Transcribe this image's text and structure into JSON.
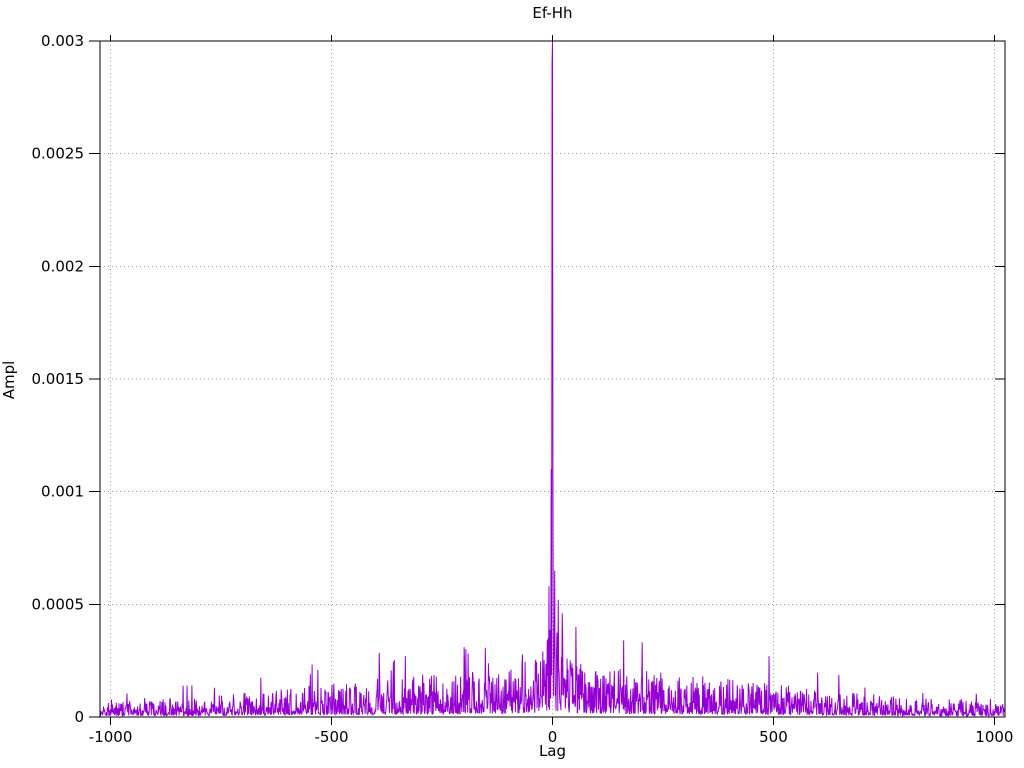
{
  "chart_data": {
    "type": "line",
    "title": "Ef-Hh",
    "xlabel": "Lag",
    "ylabel": "Ampl",
    "xlim": [
      -1024,
      1024
    ],
    "ylim": [
      0,
      0.003
    ],
    "x_ticks": [
      {
        "v": -1000,
        "label": "-1000"
      },
      {
        "v": -500,
        "label": "-500"
      },
      {
        "v": 0,
        "label": "0"
      },
      {
        "v": 500,
        "label": "500"
      },
      {
        "v": 1000,
        "label": "1000"
      }
    ],
    "y_ticks": [
      {
        "v": 0,
        "label": "0"
      },
      {
        "v": 0.0005,
        "label": "0.0005"
      },
      {
        "v": 0.001,
        "label": "0.001"
      },
      {
        "v": 0.0015,
        "label": "0.0015"
      },
      {
        "v": 0.002,
        "label": "0.002"
      },
      {
        "v": 0.0025,
        "label": "0.0025"
      },
      {
        "v": 0.003,
        "label": "0.003"
      }
    ],
    "grid": true,
    "grid_style": "dotted",
    "grid_color": "#9e9e9e",
    "axis_color": "#000000",
    "legend": "none",
    "series": [
      {
        "name": "Ef-Hh",
        "color": "#9400d3",
        "style": "noisy-impulses"
      }
    ],
    "peak": {
      "x": 0,
      "y": 0.003
    },
    "spikes": [
      [
        -8,
        0.00058
      ],
      [
        -3,
        0.0011
      ],
      [
        -1,
        0.0029
      ],
      [
        0,
        0.003
      ],
      [
        1,
        0.00105
      ],
      [
        5,
        0.00065
      ],
      [
        13,
        0.00052
      ],
      [
        22,
        0.00046
      ],
      [
        -200,
        0.00031
      ],
      [
        -333,
        0.00027
      ],
      [
        490,
        0.00027
      ]
    ],
    "noise": {
      "seed": 1234567,
      "n": 2048,
      "envelope": [
        [
          0,
          0.00055
        ],
        [
          3,
          0.00045
        ],
        [
          10,
          0.00038
        ],
        [
          30,
          0.00028
        ],
        [
          80,
          0.00023
        ],
        [
          200,
          0.00021
        ],
        [
          350,
          0.00018
        ],
        [
          500,
          0.00015
        ],
        [
          650,
          0.000115
        ],
        [
          800,
          9e-05
        ],
        [
          950,
          7.2e-05
        ],
        [
          1024,
          6.5e-05
        ]
      ],
      "floor_frac": 0.07,
      "shape_pow": 2.2,
      "boost_prob": 0.06,
      "boost_mult": 1.7
    }
  }
}
